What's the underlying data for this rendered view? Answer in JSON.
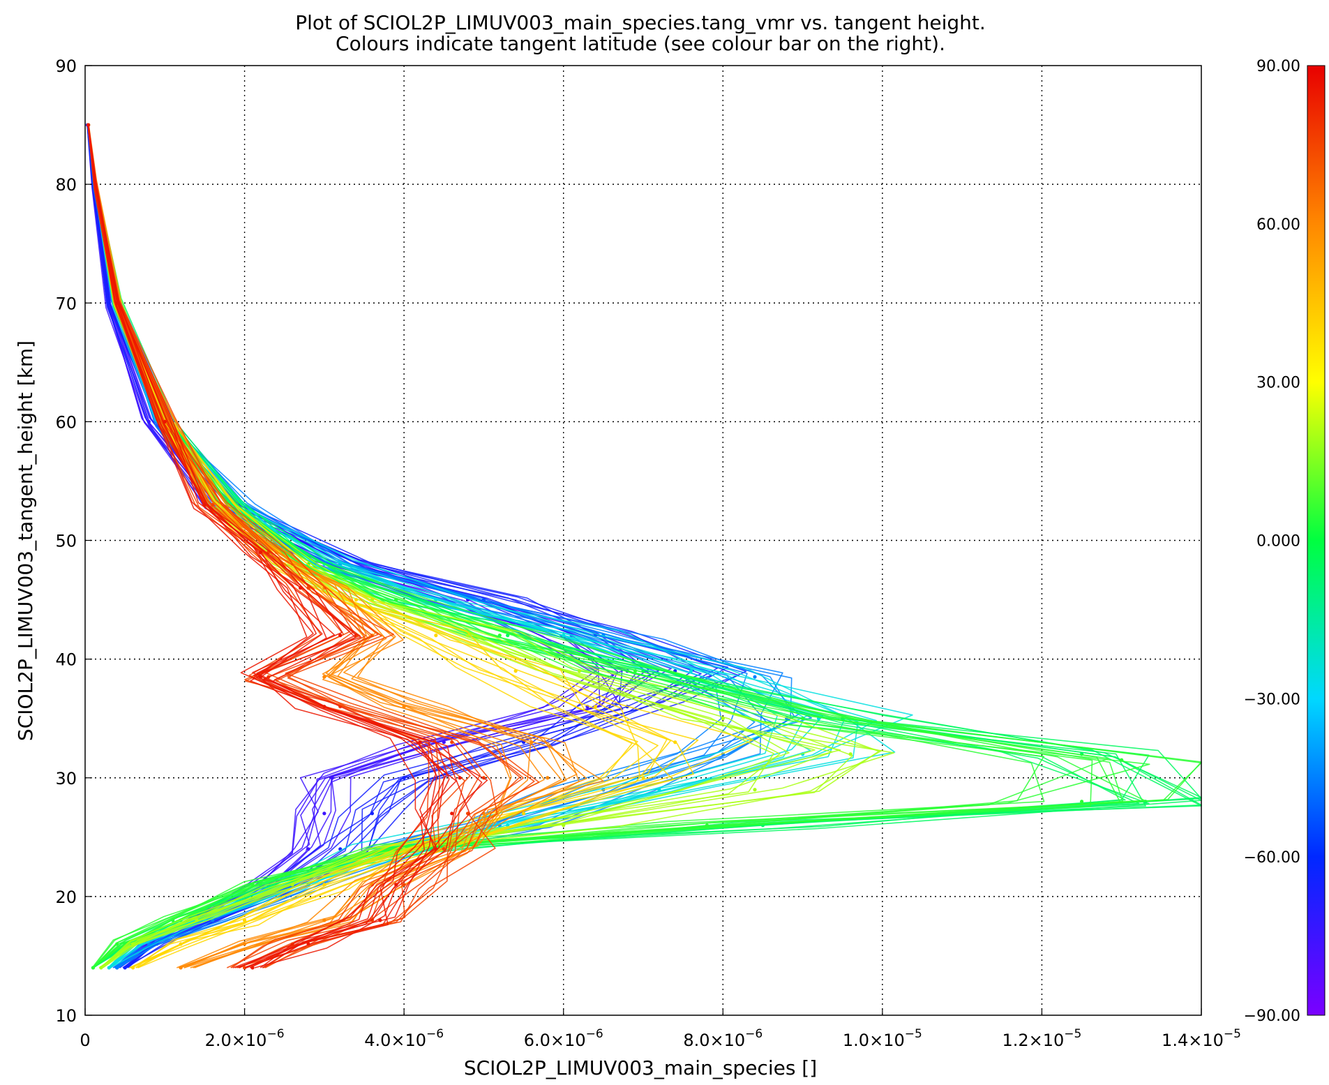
{
  "chart_data": {
    "type": "line",
    "title": "Plot of SCIOL2P_LIMUV003_main_species.tang_vmr vs. tangent height.",
    "subtitle": "Colours indicate tangent latitude (see colour bar on the right).",
    "xlabel": "SCIOL2P_LIMUV003_main_species []",
    "ylabel": "SCIOL2P_LIMUV003_tangent_height [km]",
    "xlim": [
      0,
      1.4e-05
    ],
    "ylim": [
      10,
      90
    ],
    "grid": true,
    "x_ticks": [
      {
        "value": 0,
        "label": "0",
        "exp": ""
      },
      {
        "value": 2e-06,
        "label": "2.0×10",
        "exp": "−6"
      },
      {
        "value": 4e-06,
        "label": "4.0×10",
        "exp": "−6"
      },
      {
        "value": 6e-06,
        "label": "6.0×10",
        "exp": "−6"
      },
      {
        "value": 8e-06,
        "label": "8.0×10",
        "exp": "−6"
      },
      {
        "value": 1e-05,
        "label": "1.0×10",
        "exp": "−5"
      },
      {
        "value": 1.2e-05,
        "label": "1.2×10",
        "exp": "−5"
      },
      {
        "value": 1.4e-05,
        "label": "1.4×10",
        "exp": "−5"
      }
    ],
    "y_ticks": [
      {
        "value": 10,
        "label": "10"
      },
      {
        "value": 20,
        "label": "20"
      },
      {
        "value": 30,
        "label": "30"
      },
      {
        "value": 40,
        "label": "40"
      },
      {
        "value": 50,
        "label": "50"
      },
      {
        "value": 60,
        "label": "60"
      },
      {
        "value": 70,
        "label": "70"
      },
      {
        "value": 80,
        "label": "80"
      },
      {
        "value": 90,
        "label": "90"
      }
    ],
    "colorbar": {
      "range": [
        -90,
        90
      ],
      "ticks": [
        {
          "value": 90,
          "label": "90.00"
        },
        {
          "value": 60,
          "label": "60.00"
        },
        {
          "value": 30,
          "label": "30.00"
        },
        {
          "value": 0,
          "label": "0.000"
        },
        {
          "value": -30,
          "label": "−30.00"
        },
        {
          "value": -60,
          "label": "−60.00"
        },
        {
          "value": -90,
          "label": "−90.00"
        }
      ],
      "colors": [
        "#7a00ff",
        "#0028ff",
        "#00d8ff",
        "#00ff40",
        "#ffff00",
        "#ff8800",
        "#e80000"
      ],
      "placement": "right"
    },
    "series": [
      {
        "latitude": -75,
        "x": [
          3e-08,
          1e-07,
          3e-07,
          8e-07,
          1.7e-06,
          3.2e-06,
          4.8e-06,
          6.1e-06,
          6.8e-06,
          6.3e-06,
          4.5e-06,
          3.1e-06,
          3e-06,
          2.8e-06,
          2.3e-06,
          1.4e-06,
          8e-07,
          4e-07
        ],
        "y": [
          85,
          80,
          70,
          60,
          53,
          48,
          45,
          42,
          39,
          36,
          33,
          30,
          27,
          24,
          21,
          18,
          16,
          14
        ]
      },
      {
        "latitude": -65,
        "x": [
          3e-08,
          1e-07,
          3e-07,
          9e-07,
          1.8e-06,
          3.3e-06,
          5e-06,
          6.4e-06,
          7.4e-06,
          6.8e-06,
          5.5e-06,
          4e-06,
          3.6e-06,
          3.2e-06,
          2.6e-06,
          1.6e-06,
          9e-07,
          5e-07
        ],
        "y": [
          85,
          80,
          70,
          60,
          53,
          48,
          45,
          42,
          39,
          36,
          33,
          30,
          27,
          24,
          21,
          18,
          16,
          14
        ]
      },
      {
        "latitude": -45,
        "x": [
          4e-08,
          1.2e-07,
          4e-07,
          1e-06,
          1.9e-06,
          3.2e-06,
          4.9e-06,
          6.5e-06,
          8.4e-06,
          8.8e-06,
          8e-06,
          6.5e-06,
          5.2e-06,
          4e-06,
          2.8e-06,
          1.6e-06,
          8e-07,
          4e-07
        ],
        "y": [
          85,
          80,
          70,
          60,
          53,
          48,
          45,
          42,
          38.5,
          35,
          32,
          29,
          26,
          24,
          21,
          18,
          16,
          14
        ]
      },
      {
        "latitude": -25,
        "x": [
          4e-08,
          1.3e-07,
          4e-07,
          1e-06,
          1.9e-06,
          3e-06,
          4.4e-06,
          6e-06,
          7.6e-06,
          9.2e-06,
          9e-06,
          7.2e-06,
          5.3e-06,
          3.8e-06,
          2.6e-06,
          1.5e-06,
          7e-07,
          3e-07
        ],
        "y": [
          85,
          80,
          70,
          60,
          53,
          48,
          45,
          42,
          39,
          35,
          32,
          29,
          26,
          24,
          21,
          18,
          16,
          14
        ]
      },
      {
        "latitude": -5,
        "x": [
          4e-08,
          1.3e-07,
          4e-07,
          1e-06,
          1.8e-06,
          2.8e-06,
          3.9e-06,
          5.3e-06,
          7e-06,
          9.5e-06,
          1.25e-05,
          1.33e-05,
          8.5e-06,
          4e-06,
          2.2e-06,
          1.2e-06,
          5e-07,
          1e-07
        ],
        "y": [
          85,
          80,
          70,
          60,
          53,
          48,
          45,
          42,
          39,
          35,
          32,
          28,
          26,
          24,
          21,
          18,
          16,
          14
        ]
      },
      {
        "latitude": 5,
        "x": [
          4e-08,
          1.3e-07,
          4e-07,
          1e-06,
          1.8e-06,
          2.8e-06,
          3.9e-06,
          5.2e-06,
          6.9e-06,
          9e-06,
          1.3e-05,
          1.25e-05,
          7.8e-06,
          3.9e-06,
          2.1e-06,
          1.1e-06,
          4e-07,
          1e-07
        ],
        "y": [
          85,
          80,
          70,
          60,
          53,
          48,
          45,
          42,
          39,
          35,
          31.5,
          28,
          26,
          24,
          21,
          18,
          16,
          14
        ]
      },
      {
        "latitude": 20,
        "x": [
          4e-08,
          1.3e-07,
          4e-07,
          1e-06,
          1.7e-06,
          2.6e-06,
          3.6e-06,
          4.8e-06,
          6.2e-06,
          8e-06,
          9.6e-06,
          8.4e-06,
          6e-06,
          4e-06,
          2.6e-06,
          1.4e-06,
          6e-07,
          2e-07
        ],
        "y": [
          85,
          80,
          70,
          60,
          53,
          48,
          45,
          42,
          39,
          35,
          32,
          29,
          26,
          24,
          21,
          18,
          16,
          14
        ]
      },
      {
        "latitude": 40,
        "x": [
          4e-08,
          1.3e-07,
          4e-07,
          1e-06,
          1.7e-06,
          2.5e-06,
          3.4e-06,
          4.4e-06,
          5.4e-06,
          6.4e-06,
          7.4e-06,
          7e-06,
          5.5e-06,
          4.2e-06,
          3e-06,
          2e-06,
          1.2e-06,
          6e-07
        ],
        "y": [
          85,
          80,
          70,
          60,
          53,
          48,
          45,
          42,
          39,
          36,
          33,
          30,
          27,
          24,
          21,
          18,
          16,
          14
        ]
      },
      {
        "latitude": 60,
        "x": [
          4e-08,
          1.3e-07,
          4e-07,
          1e-06,
          1.6e-06,
          2.4e-06,
          3e-06,
          3.6e-06,
          3e-06,
          4e-06,
          5.6e-06,
          5.8e-06,
          5e-06,
          4.4e-06,
          3.6e-06,
          3e-06,
          2e-06,
          1.2e-06
        ],
        "y": [
          85,
          80,
          70,
          60,
          53,
          49,
          46,
          42,
          38.5,
          36,
          33,
          30,
          27,
          24,
          21,
          18,
          16,
          14
        ]
      },
      {
        "latitude": 75,
        "x": [
          4e-08,
          1.3e-07,
          4e-07,
          1e-06,
          1.6e-06,
          2.3e-06,
          2.8e-06,
          3.4e-06,
          2.3e-06,
          3.2e-06,
          4.6e-06,
          5e-06,
          4.8e-06,
          4.5e-06,
          4e-06,
          3.6e-06,
          2.6e-06,
          2e-06
        ],
        "y": [
          85,
          80,
          70,
          60,
          53,
          49,
          46,
          42,
          38.5,
          36,
          33,
          30,
          27,
          24,
          21,
          18,
          16,
          14
        ]
      },
      {
        "latitude": 85,
        "x": [
          4e-08,
          1.3e-07,
          4e-07,
          1e-06,
          1.5e-06,
          2.2e-06,
          2.7e-06,
          3.2e-06,
          2.2e-06,
          3e-06,
          4.2e-06,
          4.7e-06,
          4.6e-06,
          4.4e-06,
          3.9e-06,
          3.7e-06,
          2.8e-06,
          2.1e-06
        ],
        "y": [
          85,
          80,
          70,
          60,
          53,
          49,
          46,
          42,
          38.5,
          36,
          33,
          30,
          27,
          24,
          21,
          18,
          16,
          14
        ]
      }
    ]
  }
}
